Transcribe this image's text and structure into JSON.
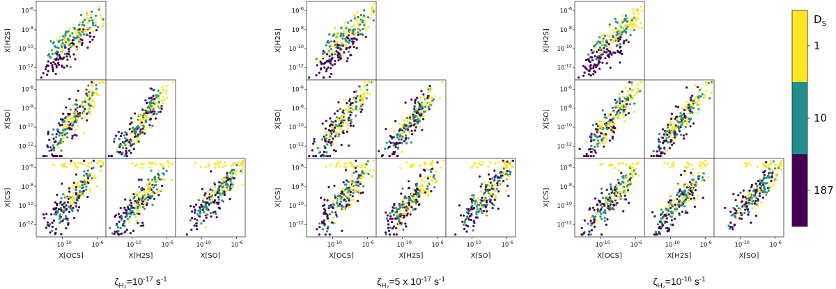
{
  "chart_data": {
    "type": "scatter",
    "description_layout": "three corner-plot grids, each a lower-triangular pair plot of log abundances",
    "variables": [
      "X[OCS]",
      "X[H2S]",
      "X[SO]",
      "X[CS]"
    ],
    "y_tick_labels": [
      "10^-6",
      "10^-8",
      "10^-10",
      "10^-12"
    ],
    "x_tick_labels": [
      "10^-10",
      "10^-6"
    ],
    "log_axes": true,
    "colorbar": {
      "title": "D",
      "title_subscript": "S",
      "ticks": [
        "1",
        "10",
        "187"
      ],
      "colors": {
        "1": "#fde725",
        "10": "#21908c",
        "187": "#440154"
      }
    },
    "grids": [
      {
        "caption_symbol": "ζ",
        "caption_sub": "H₂",
        "caption_eq": "=",
        "caption_value": "10",
        "caption_exp": "-17",
        "caption_unit": " s",
        "caption_unit_exp": "-1",
        "caption_text": "ζH2=10-17 s-1",
        "panels": [
          {
            "y": "X[H2S]",
            "x": "X[OCS]"
          },
          {
            "y": "X[SO]",
            "x": "X[OCS]"
          },
          {
            "y": "X[SO]",
            "x": "X[H2S]"
          },
          {
            "y": "X[CS]",
            "x": "X[OCS]"
          },
          {
            "y": "X[CS]",
            "x": "X[H2S]"
          },
          {
            "y": "X[CS]",
            "x": "X[SO]"
          }
        ]
      },
      {
        "caption_symbol": "ζ",
        "caption_sub": "H₂",
        "caption_eq": "=",
        "caption_value": "5 x 10",
        "caption_exp": "-17",
        "caption_unit": " s",
        "caption_unit_exp": "-1",
        "caption_text": "ζH2=5 x 10-17 s-1",
        "panels": [
          {
            "y": "X[H2S]",
            "x": "X[OCS]"
          },
          {
            "y": "X[SO]",
            "x": "X[OCS]"
          },
          {
            "y": "X[SO]",
            "x": "X[H2S]"
          },
          {
            "y": "X[CS]",
            "x": "X[OCS]"
          },
          {
            "y": "X[CS]",
            "x": "X[H2S]"
          },
          {
            "y": "X[CS]",
            "x": "X[SO]"
          }
        ]
      },
      {
        "caption_symbol": "ζ",
        "caption_sub": "H₂",
        "caption_eq": "=",
        "caption_value": "10",
        "caption_exp": "-16",
        "caption_unit": " s",
        "caption_unit_exp": "-1",
        "caption_text": "ζH2=10-16 s-1",
        "panels": [
          {
            "y": "X[H2S]",
            "x": "X[OCS]"
          },
          {
            "y": "X[SO]",
            "x": "X[OCS]"
          },
          {
            "y": "X[SO]",
            "x": "X[H2S]"
          },
          {
            "y": "X[CS]",
            "x": "X[OCS]"
          },
          {
            "y": "X[CS]",
            "x": "X[H2S]"
          },
          {
            "y": "X[CS]",
            "x": "X[SO]"
          }
        ]
      }
    ],
    "log_range": {
      "x": [
        -13,
        -5
      ],
      "y": [
        -13.3,
        -5.0
      ]
    }
  }
}
